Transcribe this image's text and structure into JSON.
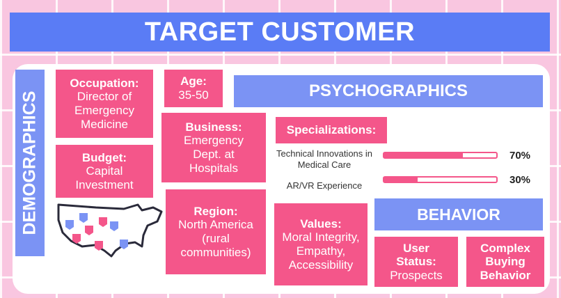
{
  "title": "TARGET CUSTOMER",
  "demographics": {
    "label": "DEMOGRAPHICS",
    "occupation": {
      "title": "Occupation:",
      "value": "Director of Emergency Medicine"
    },
    "age": {
      "title": "Age:",
      "value": "35-50"
    },
    "business": {
      "title": "Business:",
      "value": "Emergency Dept. at Hospitals"
    },
    "budget": {
      "title": "Budget:",
      "value": "Capital Investment"
    },
    "region": {
      "title": "Region:",
      "value": "North America (rural communities)"
    },
    "map_icon": "usa-map-with-markers"
  },
  "psychographics": {
    "label": "PSYCHOGRAPHICS",
    "specializations_title": "Specializations:",
    "specializations": [
      {
        "label": "Technical Innovations in Medical Care",
        "percent_text": "70%",
        "value": 0.7
      },
      {
        "label": "AR/VR Experience",
        "percent_text": "30%",
        "value": 0.3
      }
    ],
    "values": {
      "title": "Values:",
      "value": "Moral Integrity, Empathy, Accessibility"
    }
  },
  "behavior": {
    "label": "BEHAVIOR",
    "user_status": {
      "title": "User Status:",
      "value": "Prospects"
    },
    "complex": {
      "title": "Complex Buying Behavior"
    }
  },
  "colors": {
    "pink": "#f4568a",
    "blue": "#7b93f4",
    "banner": "#5a7cf5",
    "background": "#f9c6e0"
  }
}
